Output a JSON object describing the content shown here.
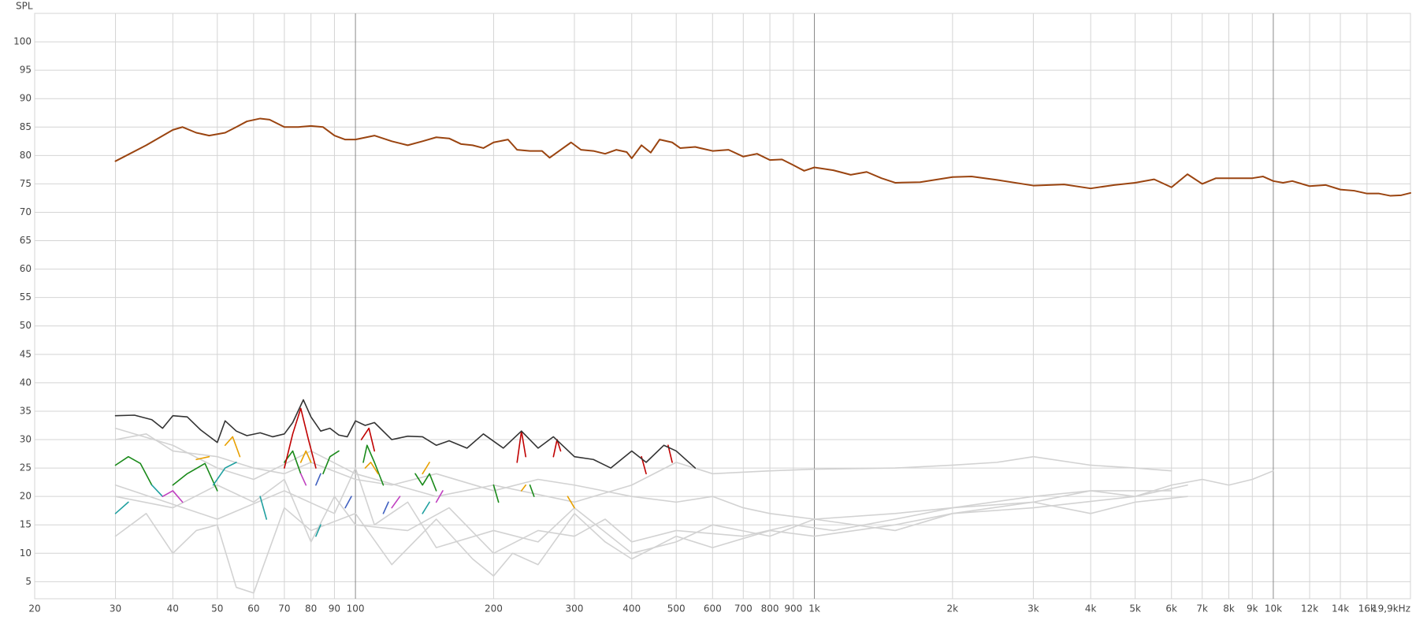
{
  "chart_data": {
    "type": "line",
    "y_label": "SPL",
    "x_scale": "log",
    "grid": true,
    "xlim": [
      20,
      19900
    ],
    "ylim": [
      2,
      105
    ],
    "xticks": [
      20,
      30,
      40,
      50,
      60,
      70,
      80,
      90,
      100,
      200,
      300,
      400,
      500,
      600,
      700,
      800,
      900,
      {
        "value": 1000,
        "label": "1k"
      },
      {
        "value": 2000,
        "label": "2k"
      },
      {
        "value": 3000,
        "label": "3k"
      },
      {
        "value": 4000,
        "label": "4k"
      },
      {
        "value": 5000,
        "label": "5k"
      },
      {
        "value": 6000,
        "label": "6k"
      },
      {
        "value": 7000,
        "label": "7k"
      },
      {
        "value": 8000,
        "label": "8k"
      },
      {
        "value": 9000,
        "label": "9k"
      },
      {
        "value": 10000,
        "label": "10k"
      },
      {
        "value": 12000,
        "label": "12k"
      },
      {
        "value": 14000,
        "label": "14k"
      },
      {
        "value": 16000,
        "label": "16k"
      },
      {
        "value": 19900,
        "label": "19,9kHz"
      }
    ],
    "yticks": [
      5,
      10,
      15,
      20,
      25,
      30,
      35,
      40,
      45,
      50,
      55,
      60,
      65,
      70,
      75,
      80,
      85,
      90,
      95,
      100
    ],
    "series": [
      {
        "color": "#d2d2d2",
        "x": [
          30,
          35,
          40,
          50,
          60,
          70,
          80,
          100,
          120,
          150,
          200,
          250,
          300,
          400,
          500,
          600,
          700,
          800,
          1000,
          1500,
          2000,
          3000,
          4000,
          5000,
          6000,
          7000,
          8000,
          9000,
          10000
        ],
        "values": [
          30,
          31,
          28,
          27,
          25,
          24,
          26,
          23,
          22,
          24,
          21,
          23,
          22,
          20,
          19,
          20,
          18,
          17,
          16,
          17,
          18,
          20,
          21,
          20,
          22,
          23,
          22,
          23,
          24.5
        ]
      },
      {
        "color": "#d2d2d2",
        "x": [
          30,
          40,
          50,
          60,
          80,
          100,
          150,
          200,
          300,
          400,
          500,
          600,
          800,
          1000,
          1500,
          2000,
          2500,
          3000,
          4000,
          5000,
          6000
        ],
        "values": [
          32,
          29,
          25,
          23,
          28,
          24,
          20,
          22,
          19,
          22,
          26,
          24,
          24.5,
          24.8,
          25,
          25.5,
          26,
          27,
          25.5,
          25,
          24.5
        ]
      },
      {
        "color": "#d2d2d2",
        "x": [
          30,
          35,
          40,
          45,
          50,
          55,
          60,
          70,
          80,
          100,
          120,
          150,
          180,
          200,
          220,
          250,
          300,
          350,
          400,
          500,
          600,
          800,
          1000,
          1500,
          2000,
          3000,
          5000,
          6500
        ],
        "values": [
          13,
          17,
          10,
          14,
          15,
          4,
          3,
          18,
          14,
          17,
          8,
          16,
          9,
          6,
          10,
          8,
          17,
          12,
          9,
          13,
          11,
          14,
          13,
          15,
          17,
          18,
          20,
          22
        ]
      },
      {
        "color": "#d2d2d2",
        "x": [
          30,
          40,
          50,
          60,
          70,
          80,
          90,
          100,
          130,
          160,
          200,
          250,
          300,
          350,
          400,
          500,
          700,
          900,
          1100,
          1500,
          2000,
          3000,
          4000,
          6000
        ],
        "values": [
          20,
          18,
          22,
          19,
          23,
          12,
          20,
          15,
          14,
          18,
          10,
          14,
          13,
          16,
          12,
          14,
          13,
          15,
          14,
          16,
          18,
          19,
          21,
          21
        ]
      },
      {
        "color": "#d2d2d2",
        "x": [
          30,
          50,
          70,
          90,
          100,
          110,
          130,
          150,
          200,
          250,
          300,
          400,
          500,
          600,
          800,
          1000,
          1500,
          2000,
          3000,
          4000,
          5000,
          6500
        ],
        "values": [
          22,
          16,
          21,
          17,
          25,
          15,
          19,
          11,
          14,
          12,
          18,
          10,
          12,
          15,
          13,
          16,
          14,
          17,
          19,
          17,
          19,
          20
        ]
      },
      {
        "color": "#1a8a1a",
        "x": [
          30,
          32,
          34,
          36,
          38,
          40,
          43,
          47,
          50,
          55,
          70,
          73,
          76,
          80,
          85,
          88,
          92,
          95,
          104,
          106,
          110,
          115,
          120,
          135,
          140,
          145,
          150,
          160,
          200,
          205,
          210,
          240,
          245
        ],
        "values": [
          25.5,
          27,
          25.8,
          22,
          null,
          22,
          24,
          25.8,
          21,
          null,
          26,
          28,
          24,
          null,
          24,
          27,
          28,
          null,
          26,
          29,
          26,
          22,
          null,
          24,
          22,
          24,
          21,
          null,
          22,
          19,
          null,
          22,
          20
        ]
      },
      {
        "color": "#e8a000",
        "x": [
          45,
          48,
          50,
          52,
          54,
          56,
          58,
          76,
          78,
          80,
          85,
          105,
          108,
          112,
          120,
          140,
          145,
          150,
          230,
          235,
          240,
          290,
          300
        ],
        "values": [
          26.5,
          27,
          null,
          29,
          30.5,
          27,
          null,
          26,
          28,
          26,
          null,
          25,
          26,
          24,
          null,
          24,
          26,
          null,
          21,
          22,
          null,
          20,
          18
        ]
      },
      {
        "color": "#20a0a0",
        "x": [
          30,
          32,
          34,
          36,
          38,
          40,
          49,
          52,
          55,
          58,
          62,
          64,
          66,
          82,
          84,
          86,
          140,
          145,
          150
        ],
        "values": [
          17,
          19,
          null,
          22,
          20,
          null,
          22,
          25,
          26,
          null,
          20,
          16,
          null,
          13,
          15,
          null,
          17,
          19,
          null
        ]
      },
      {
        "color": "#c040c0",
        "x": [
          38,
          40,
          42,
          44,
          76,
          78,
          80,
          120,
          125,
          130,
          150,
          155
        ],
        "values": [
          20,
          21,
          19,
          null,
          24,
          22,
          null,
          18,
          20,
          null,
          19,
          21
        ]
      },
      {
        "color": "#4060c0",
        "x": [
          82,
          84,
          86,
          95,
          98,
          100,
          115,
          118
        ],
        "values": [
          22,
          24,
          null,
          18,
          20,
          null,
          17,
          19
        ]
      },
      {
        "color": "#c00000",
        "x": [
          70,
          73,
          76,
          79,
          82,
          90,
          103,
          107,
          110,
          150,
          225,
          230,
          235,
          250,
          270,
          275,
          280,
          350,
          420,
          430,
          440,
          480,
          490
        ],
        "values": [
          25,
          31,
          35.5,
          30,
          25,
          null,
          30,
          32,
          28,
          null,
          26,
          31.5,
          27,
          null,
          27,
          30,
          28,
          null,
          27,
          24,
          null,
          29,
          26
        ]
      },
      {
        "color": "#333333",
        "x": [
          30,
          33,
          36,
          38,
          40,
          43,
          46,
          50,
          52,
          55,
          58,
          62,
          66,
          70,
          73,
          77,
          80,
          84,
          88,
          92,
          96,
          100,
          105,
          110,
          120,
          130,
          140,
          150,
          160,
          175,
          190,
          210,
          230,
          250,
          270,
          300,
          330,
          360,
          400,
          430,
          470,
          500,
          550
        ],
        "values": [
          34.2,
          34.3,
          33.5,
          32,
          34.2,
          34,
          31.7,
          29.5,
          33.3,
          31.5,
          30.7,
          31.2,
          30.5,
          31,
          33,
          37,
          34,
          31.5,
          32,
          30.8,
          30.5,
          33.3,
          32.5,
          33,
          30,
          30.6,
          30.5,
          29,
          29.8,
          28.5,
          31,
          28.5,
          31.5,
          28.5,
          30.5,
          27,
          26.5,
          25,
          28,
          26,
          29,
          28,
          25
        ]
      },
      {
        "color": "#9a4410",
        "x": [
          30,
          35,
          40,
          42,
          45,
          48,
          52,
          55,
          58,
          62,
          65,
          70,
          75,
          80,
          85,
          90,
          95,
          100,
          110,
          120,
          130,
          140,
          150,
          160,
          170,
          180,
          190,
          200,
          215,
          225,
          240,
          255,
          265,
          280,
          295,
          310,
          330,
          350,
          370,
          390,
          400,
          420,
          440,
          460,
          490,
          510,
          550,
          600,
          650,
          700,
          750,
          800,
          850,
          900,
          950,
          1000,
          1100,
          1200,
          1300,
          1400,
          1500,
          1700,
          2000,
          2200,
          2500,
          3000,
          3500,
          4000,
          4500,
          5000,
          5500,
          6000,
          6500,
          7000,
          7500,
          8000,
          9000,
          9500,
          10000,
          10500,
          11000,
          12000,
          13000,
          14000,
          15000,
          16000,
          17000,
          18000,
          19000,
          19900
        ],
        "values": [
          79,
          81.8,
          84.5,
          85,
          84,
          83.5,
          84,
          85,
          86,
          86.5,
          86.3,
          85,
          85,
          85.2,
          85,
          83.5,
          82.8,
          82.8,
          83.5,
          82.5,
          81.8,
          82.5,
          83.2,
          83,
          82,
          81.8,
          81.3,
          82.3,
          82.8,
          81,
          80.8,
          80.8,
          79.6,
          81,
          82.3,
          81,
          80.8,
          80.3,
          81,
          80.6,
          79.5,
          81.8,
          80.5,
          82.8,
          82.3,
          81.3,
          81.5,
          80.8,
          81,
          79.8,
          80.3,
          79.2,
          79.3,
          78.3,
          77.3,
          77.9,
          77.4,
          76.6,
          77.1,
          76,
          75.2,
          75.3,
          76.2,
          76.3,
          75.7,
          74.7,
          74.9,
          74.2,
          74.8,
          75.2,
          75.8,
          74.4,
          76.7,
          75,
          76,
          76,
          76,
          76.3,
          75.5,
          75.2,
          75.5,
          74.6,
          74.8,
          74,
          73.8,
          73.3,
          73.3,
          72.9,
          73,
          73.4
        ]
      }
    ]
  }
}
